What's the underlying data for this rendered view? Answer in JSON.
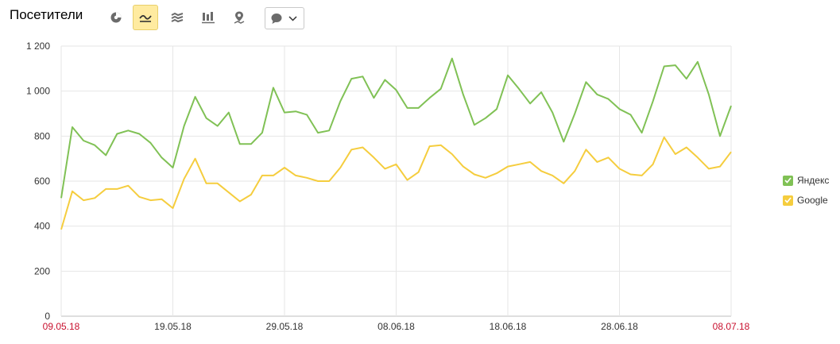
{
  "header": {
    "title": "Посетители"
  },
  "toolbar": {
    "buttons": [
      {
        "icon": "pie-chart-icon",
        "active": false
      },
      {
        "icon": "line-chart-icon",
        "active": true
      },
      {
        "icon": "area-chart-icon",
        "active": false
      },
      {
        "icon": "bar-chart-icon",
        "active": false
      },
      {
        "icon": "map-icon",
        "active": false
      }
    ],
    "dropdown_icon": "speech-bubble-icon"
  },
  "colors": {
    "yandex": "#80c155",
    "google": "#f5cd3e",
    "grid": "#e6e6e6",
    "edge_date": "#c8102e",
    "active_button": "#ffeba0"
  },
  "chart_data": {
    "type": "line",
    "xlabel": "",
    "ylabel": "",
    "ylim": [
      0,
      1200
    ],
    "y_ticks": [
      "0",
      "200",
      "400",
      "600",
      "800",
      "1 000",
      "1 200"
    ],
    "x_tick_labels": [
      "09.05.18",
      "19.05.18",
      "29.05.18",
      "08.06.18",
      "18.06.18",
      "28.06.18",
      "08.07.18"
    ],
    "x_range": [
      "2018-05-09",
      "2018-07-08"
    ],
    "grid": true,
    "legend_placement": "right",
    "series": [
      {
        "name": "Яндекс",
        "color": "#80c155",
        "values": [
          525,
          840,
          780,
          760,
          715,
          810,
          825,
          810,
          770,
          705,
          660,
          845,
          975,
          880,
          845,
          905,
          765,
          765,
          815,
          1015,
          905,
          910,
          895,
          815,
          825,
          955,
          1055,
          1065,
          970,
          1050,
          1005,
          925,
          925,
          970,
          1010,
          1145,
          985,
          850,
          880,
          920,
          1070,
          1010,
          945,
          995,
          905,
          775,
          900,
          1040,
          985,
          965,
          920,
          895,
          815,
          955,
          1110,
          1115,
          1055,
          1130,
          985,
          800,
          935
        ]
      },
      {
        "name": "Google",
        "color": "#f5cd3e",
        "values": [
          385,
          555,
          515,
          525,
          565,
          565,
          580,
          530,
          515,
          520,
          480,
          610,
          700,
          590,
          590,
          550,
          510,
          540,
          625,
          625,
          660,
          625,
          615,
          600,
          600,
          660,
          740,
          750,
          705,
          655,
          675,
          605,
          640,
          755,
          760,
          720,
          665,
          630,
          615,
          635,
          665,
          675,
          685,
          645,
          625,
          590,
          645,
          740,
          685,
          705,
          655,
          630,
          625,
          675,
          795,
          720,
          750,
          705,
          655,
          665,
          730
        ]
      }
    ]
  }
}
